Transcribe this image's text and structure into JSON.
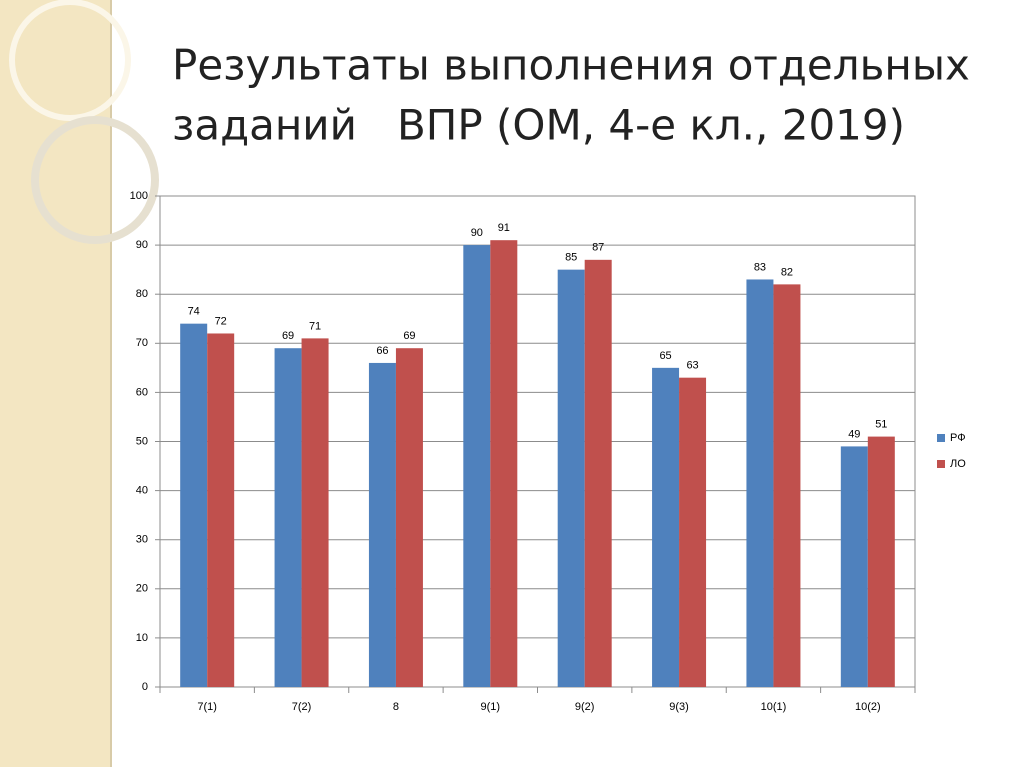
{
  "chart_data": {
    "type": "bar",
    "title": [
      "Результаты выполнения отдельных",
      "заданий   ВПР (ОМ, 4-е кл., 2019)"
    ],
    "categories": [
      "7(1)",
      "7(2)",
      "8",
      "9(1)",
      "9(2)",
      "9(3)",
      "10(1)",
      "10(2)"
    ],
    "series": [
      {
        "name": "РФ",
        "color": "#4f81bd",
        "values": [
          74,
          69,
          66,
          90,
          85,
          65,
          83,
          49
        ]
      },
      {
        "name": "ЛО",
        "color": "#c0504d",
        "values": [
          72,
          71,
          69,
          91,
          87,
          63,
          82,
          51
        ]
      }
    ],
    "ylim": [
      0,
      100
    ],
    "yticks": [
      0,
      10,
      20,
      30,
      40,
      50,
      60,
      70,
      80,
      90,
      100
    ],
    "grid": true,
    "legend": "right"
  }
}
